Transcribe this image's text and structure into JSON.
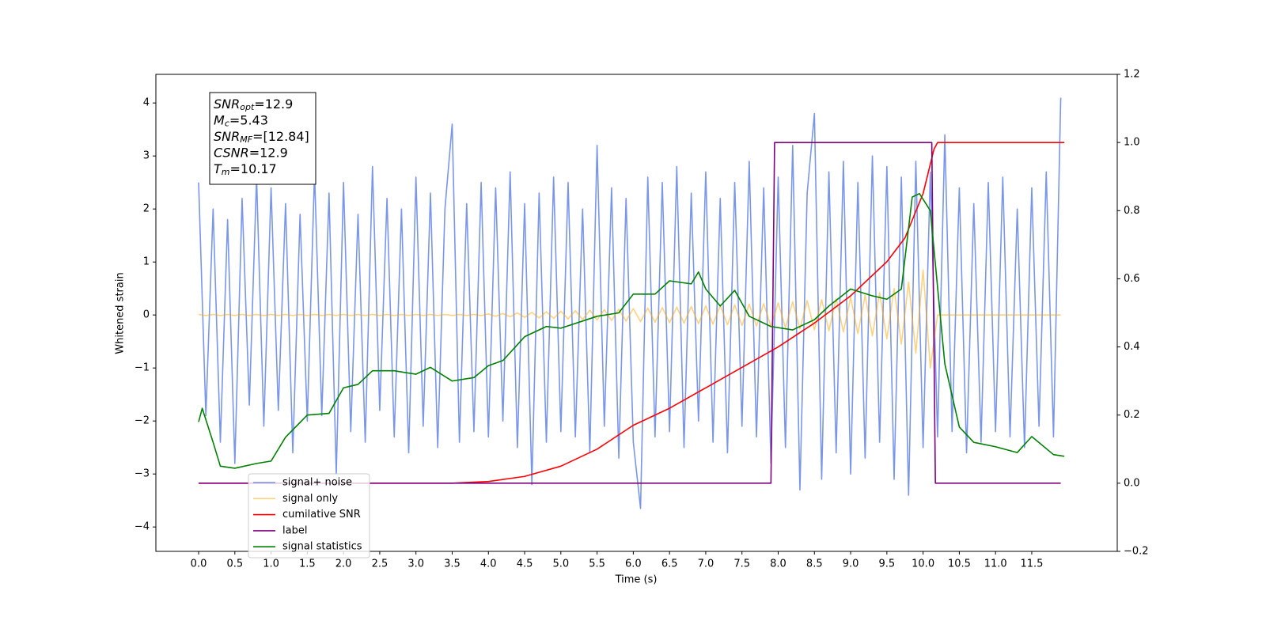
{
  "chart_data": {
    "type": "line",
    "xlabel": "Time (s)",
    "ylabel": "Whitened strain",
    "xlim": [
      -0.59,
      12.68
    ],
    "ylim": [
      -4.46,
      4.54
    ],
    "y2lim": [
      -0.2,
      1.2
    ],
    "xticks": [
      {
        "value": 0,
        "label": "0.0"
      },
      0.5,
      {
        "value": 1,
        "label": "1.0"
      },
      1.5,
      {
        "value": 2,
        "label": "2.0"
      },
      2.5,
      {
        "value": 3,
        "label": "3.0"
      },
      3.5,
      {
        "value": 4,
        "label": "4.0"
      },
      4.5,
      {
        "value": 5,
        "label": "5.0"
      },
      5.5,
      {
        "value": 6,
        "label": "6.0"
      },
      6.5,
      {
        "value": 7,
        "label": "7.0"
      },
      7.5,
      {
        "value": 8,
        "label": "8.0"
      },
      8.5,
      {
        "value": 9,
        "label": "9.0"
      },
      9.5,
      {
        "value": 10,
        "label": "10.0"
      },
      10.5,
      {
        "value": 11,
        "label": "11.0"
      },
      11.5
    ],
    "yticks": [
      {
        "value": -4,
        "label": "−4"
      },
      {
        "value": -3,
        "label": "−3"
      },
      {
        "value": -2,
        "label": "−2"
      },
      {
        "value": -1,
        "label": "−1"
      },
      0,
      1,
      2,
      3,
      4
    ],
    "y2ticks": [
      {
        "value": -0.2,
        "label": "−0.2"
      },
      {
        "value": 0,
        "label": "0.0"
      },
      0.2,
      0.4,
      0.6,
      0.8,
      {
        "value": 1,
        "label": "1.0"
      },
      1.2
    ],
    "grid": false,
    "legend": "lower left",
    "textbox": [
      {
        "main": "SNR",
        "sub": "opt",
        "rest": "=12.9"
      },
      {
        "main": "M",
        "sub": "c",
        "rest": "=5.43"
      },
      {
        "main": "SNR",
        "sub": "MF",
        "rest": "=[12.84]"
      },
      {
        "main": "CSNR",
        "rest": "=12.9"
      },
      {
        "main": "T",
        "sub": "m",
        "rest": "=10.17"
      }
    ],
    "series": [
      {
        "name": "signal+ noise",
        "color": "#4169e1",
        "alpha": 0.7,
        "axis": "y",
        "x": [
          0.0,
          0.1,
          0.2,
          0.3,
          0.4,
          0.5,
          0.6,
          0.7,
          0.8,
          0.9,
          1.0,
          1.1,
          1.2,
          1.3,
          1.4,
          1.5,
          1.6,
          1.7,
          1.8,
          1.9,
          2.0,
          2.1,
          2.2,
          2.3,
          2.4,
          2.5,
          2.6,
          2.7,
          2.8,
          2.9,
          3.0,
          3.1,
          3.2,
          3.3,
          3.4,
          3.5,
          3.6,
          3.7,
          3.8,
          3.9,
          4.0,
          4.1,
          4.2,
          4.3,
          4.4,
          4.5,
          4.6,
          4.7,
          4.8,
          4.9,
          5.0,
          5.1,
          5.2,
          5.3,
          5.4,
          5.5,
          5.6,
          5.7,
          5.8,
          5.9,
          6.0,
          6.1,
          6.2,
          6.3,
          6.4,
          6.5,
          6.6,
          6.7,
          6.8,
          6.9,
          7.0,
          7.1,
          7.2,
          7.3,
          7.4,
          7.5,
          7.6,
          7.7,
          7.8,
          7.9,
          8.0,
          8.1,
          8.2,
          8.3,
          8.4,
          8.5,
          8.6,
          8.7,
          8.8,
          8.9,
          9.0,
          9.1,
          9.2,
          9.3,
          9.4,
          9.5,
          9.6,
          9.7,
          9.8,
          9.9,
          10.0,
          10.1,
          10.2,
          10.3,
          10.4,
          10.5,
          10.6,
          10.7,
          10.8,
          10.9,
          11.0,
          11.1,
          11.2,
          11.3,
          11.4,
          11.5,
          11.6,
          11.7,
          11.8,
          11.9
        ],
        "values": [
          2.5,
          -1.9,
          2.0,
          -2.4,
          1.8,
          -2.8,
          2.2,
          -1.7,
          2.6,
          -2.1,
          2.4,
          -1.8,
          2.1,
          -2.6,
          1.9,
          -2.0,
          2.7,
          -1.9,
          2.3,
          -3.0,
          2.5,
          -2.2,
          1.9,
          -2.4,
          2.8,
          -1.8,
          2.2,
          -2.3,
          2.0,
          -2.6,
          2.6,
          -2.1,
          2.3,
          -2.5,
          2.0,
          3.6,
          -2.4,
          2.1,
          -2.2,
          2.5,
          -2.3,
          2.4,
          -2.0,
          2.7,
          -2.5,
          2.1,
          -3.2,
          2.3,
          -2.4,
          2.6,
          -2.2,
          2.5,
          -2.3,
          2.0,
          -2.6,
          3.2,
          -2.1,
          2.4,
          -2.7,
          2.2,
          -2.4,
          -3.65,
          2.6,
          -2.3,
          2.5,
          -2.2,
          2.8,
          -2.5,
          2.3,
          -2.0,
          2.7,
          -2.4,
          2.2,
          -2.6,
          2.5,
          -2.1,
          2.9,
          -2.3,
          2.4,
          -2.8,
          2.6,
          -2.5,
          3.2,
          -3.3,
          2.3,
          3.8,
          -3.1,
          2.7,
          -2.6,
          2.9,
          -3.0,
          2.5,
          -2.7,
          3.0,
          -2.4,
          2.8,
          -3.1,
          2.6,
          -3.4,
          2.9,
          -2.5,
          2.7,
          -2.3,
          3.4,
          -2.2,
          2.4,
          -2.6,
          2.1,
          -2.4,
          2.5,
          -2.2,
          2.6,
          -2.3,
          2.0,
          -2.5,
          2.4,
          -2.1,
          2.7,
          -2.3,
          4.1
        ]
      },
      {
        "name": "signal only",
        "color": "#ffa500",
        "alpha": 0.5,
        "axis": "y",
        "x": [
          0.0,
          0.1,
          0.2,
          0.3,
          0.4,
          0.5,
          0.6,
          0.7,
          0.8,
          0.9,
          1.0,
          1.1,
          1.2,
          1.3,
          1.4,
          1.5,
          1.6,
          1.7,
          1.8,
          1.9,
          2.0,
          2.1,
          2.2,
          2.3,
          2.4,
          2.5,
          2.6,
          2.7,
          2.8,
          2.9,
          3.0,
          3.1,
          3.2,
          3.3,
          3.4,
          3.5,
          3.6,
          3.7,
          3.8,
          3.9,
          4.0,
          4.1,
          4.2,
          4.3,
          4.4,
          4.5,
          4.6,
          4.7,
          4.8,
          4.9,
          5.0,
          5.1,
          5.2,
          5.3,
          5.4,
          5.5,
          5.6,
          5.7,
          5.8,
          5.9,
          6.0,
          6.1,
          6.2,
          6.3,
          6.4,
          6.5,
          6.6,
          6.7,
          6.8,
          6.9,
          7.0,
          7.1,
          7.2,
          7.3,
          7.4,
          7.5,
          7.6,
          7.7,
          7.8,
          7.9,
          8.0,
          8.1,
          8.2,
          8.3,
          8.4,
          8.5,
          8.6,
          8.7,
          8.8,
          8.9,
          9.0,
          9.1,
          9.2,
          9.3,
          9.4,
          9.5,
          9.6,
          9.7,
          9.8,
          9.9,
          10.0,
          10.1,
          10.2,
          10.3,
          10.4,
          10.5,
          10.6,
          10.7,
          10.8,
          10.9,
          11.0,
          11.1,
          11.2,
          11.3,
          11.4,
          11.5,
          11.6,
          11.7,
          11.8,
          11.9
        ],
        "values": [
          0.01,
          -0.01,
          0.01,
          -0.01,
          0.01,
          -0.01,
          0.01,
          -0.01,
          0.01,
          -0.01,
          0.01,
          -0.01,
          0.01,
          -0.01,
          0.01,
          -0.01,
          0.01,
          -0.01,
          0.01,
          -0.01,
          0.01,
          -0.01,
          0.01,
          -0.01,
          0.01,
          -0.01,
          0.01,
          -0.01,
          0.01,
          -0.01,
          0.01,
          -0.01,
          0.01,
          -0.01,
          0.01,
          -0.01,
          0.01,
          -0.01,
          0.01,
          -0.01,
          0.02,
          -0.025,
          0.03,
          -0.035,
          0.04,
          -0.045,
          0.05,
          -0.055,
          0.06,
          -0.065,
          0.07,
          -0.075,
          0.08,
          -0.085,
          0.09,
          -0.095,
          0.1,
          -0.105,
          0.11,
          -0.115,
          0.12,
          -0.125,
          0.13,
          -0.135,
          0.14,
          -0.145,
          0.15,
          -0.155,
          0.16,
          -0.165,
          0.17,
          -0.175,
          0.18,
          -0.185,
          0.19,
          -0.2,
          0.205,
          -0.21,
          0.215,
          -0.22,
          0.23,
          -0.24,
          0.25,
          -0.26,
          0.27,
          -0.28,
          0.29,
          -0.3,
          0.31,
          -0.32,
          0.33,
          -0.35,
          0.37,
          -0.39,
          0.42,
          -0.45,
          0.5,
          -0.55,
          0.62,
          -0.72,
          0.85,
          -1.0,
          0,
          0,
          0,
          0,
          0,
          0,
          0,
          0,
          0,
          0,
          0,
          0,
          0,
          0,
          0,
          0,
          0,
          0
        ]
      },
      {
        "name": "cumilative SNR",
        "color": "#ff0000",
        "alpha": 1,
        "axis": "y2",
        "x": [
          0.0,
          3.5,
          4.0,
          4.5,
          5.0,
          5.5,
          6.0,
          6.5,
          7.0,
          7.5,
          8.0,
          8.5,
          9.0,
          9.5,
          9.75,
          10.0,
          10.15,
          10.2,
          11.95
        ],
        "values": [
          0,
          0,
          0.005,
          0.02,
          0.05,
          0.1,
          0.17,
          0.22,
          0.28,
          0.34,
          0.4,
          0.47,
          0.55,
          0.65,
          0.72,
          0.85,
          0.98,
          1.0,
          1.0
        ]
      },
      {
        "name": "label",
        "color": "#800080",
        "alpha": 1,
        "axis": "y2",
        "x": [
          0.0,
          7.9,
          7.95,
          10.12,
          10.17,
          11.9
        ],
        "values": [
          0,
          0,
          1,
          1,
          0,
          0
        ]
      },
      {
        "name": "signal statistics",
        "color": "#008000",
        "alpha": 1,
        "axis": "y2",
        "x": [
          0.0,
          0.05,
          0.2,
          0.3,
          0.5,
          0.8,
          1.0,
          1.2,
          1.5,
          1.8,
          2.0,
          2.2,
          2.4,
          2.7,
          3.0,
          3.2,
          3.5,
          3.8,
          4.0,
          4.2,
          4.5,
          4.8,
          5.0,
          5.5,
          5.8,
          6.0,
          6.3,
          6.5,
          6.8,
          6.9,
          7.0,
          7.2,
          7.4,
          7.6,
          7.9,
          8.2,
          8.5,
          8.7,
          9.0,
          9.3,
          9.5,
          9.7,
          9.85,
          9.95,
          10.1,
          10.3,
          10.5,
          10.7,
          11.0,
          11.3,
          11.5,
          11.8,
          11.95
        ],
        "values": [
          0.18,
          0.22,
          0.12,
          0.05,
          0.044,
          0.058,
          0.065,
          0.135,
          0.2,
          0.205,
          0.28,
          0.29,
          0.33,
          0.33,
          0.32,
          0.34,
          0.3,
          0.31,
          0.345,
          0.36,
          0.43,
          0.46,
          0.455,
          0.49,
          0.5,
          0.555,
          0.555,
          0.594,
          0.585,
          0.62,
          0.57,
          0.52,
          0.566,
          0.49,
          0.46,
          0.45,
          0.48,
          0.52,
          0.57,
          0.55,
          0.54,
          0.57,
          0.84,
          0.85,
          0.8,
          0.35,
          0.165,
          0.12,
          0.107,
          0.09,
          0.137,
          0.084,
          0.079
        ]
      }
    ]
  }
}
